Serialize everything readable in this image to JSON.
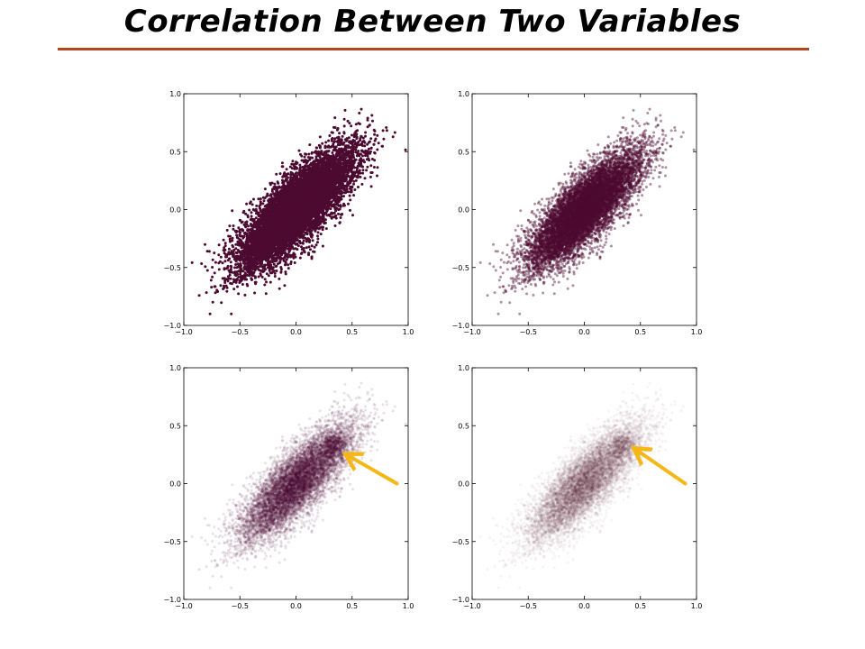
{
  "page": {
    "title": "Correlation Between Two Variables"
  },
  "colors": {
    "title_rule": "#b5461a",
    "point": "#4d0a31",
    "arrow": "#f4b717",
    "axis": "#000000"
  },
  "chart_data": [
    {
      "type": "scatter",
      "panel": "top-left",
      "point_opacity": 1.0,
      "distribution": {
        "n_points": 9000,
        "mean": [
          0.0,
          0.0
        ],
        "std": [
          0.25,
          0.25
        ],
        "correlation": 0.8
      },
      "xlim": [
        -1.0,
        1.0
      ],
      "ylim": [
        -1.0,
        1.0
      ],
      "x_ticks": [
        "−1.0",
        "−0.5",
        "0.0",
        "0.5",
        "1.0"
      ],
      "y_ticks": [
        "−1.0",
        "−0.5",
        "0.0",
        "0.5",
        "1.0"
      ],
      "grid": false,
      "annotation_arrow": null
    },
    {
      "type": "scatter",
      "panel": "top-right",
      "point_opacity": 0.45,
      "distribution": {
        "n_points": 9000,
        "mean": [
          0.0,
          0.0
        ],
        "std": [
          0.25,
          0.25
        ],
        "correlation": 0.8
      },
      "xlim": [
        -1.0,
        1.0
      ],
      "ylim": [
        -1.0,
        1.0
      ],
      "x_ticks": [
        "−1.0",
        "−0.5",
        "0.0",
        "0.5",
        "1.0"
      ],
      "y_ticks": [
        "−1.0",
        "−0.5",
        "0.0",
        "0.5",
        "1.0"
      ],
      "grid": false,
      "annotation_arrow": null
    },
    {
      "type": "scatter",
      "panel": "bottom-left",
      "point_opacity": 0.12,
      "distribution": {
        "n_points": 9000,
        "mean": [
          0.0,
          0.0
        ],
        "std": [
          0.25,
          0.25
        ],
        "correlation": 0.8
      },
      "highlight_cluster": {
        "n_points": 500,
        "center": [
          0.33,
          0.33
        ],
        "std": 0.06
      },
      "xlim": [
        -1.0,
        1.0
      ],
      "ylim": [
        -1.0,
        1.0
      ],
      "x_ticks": [
        "−1.0",
        "−0.5",
        "0.0",
        "0.5",
        "1.0"
      ],
      "y_ticks": [
        "−1.0",
        "−0.5",
        "0.0",
        "0.5",
        "1.0"
      ],
      "grid": false,
      "annotation_arrow": {
        "from": [
          0.9,
          0.0
        ],
        "to": [
          0.45,
          0.25
        ]
      }
    },
    {
      "type": "scatter",
      "panel": "bottom-right",
      "point_opacity": 0.05,
      "distribution": {
        "n_points": 9000,
        "mean": [
          0.0,
          0.0
        ],
        "std": [
          0.25,
          0.25
        ],
        "correlation": 0.8
      },
      "highlight_cluster": {
        "n_points": 500,
        "center": [
          0.33,
          0.33
        ],
        "std": 0.06
      },
      "xlim": [
        -1.0,
        1.0
      ],
      "ylim": [
        -1.0,
        1.0
      ],
      "x_ticks": [
        "−1.0",
        "−0.5",
        "0.0",
        "0.5",
        "1.0"
      ],
      "y_ticks": [
        "−1.0",
        "−0.5",
        "0.0",
        "0.5",
        "1.0"
      ],
      "grid": false,
      "annotation_arrow": {
        "from": [
          0.9,
          0.0
        ],
        "to": [
          0.45,
          0.3
        ]
      }
    }
  ]
}
